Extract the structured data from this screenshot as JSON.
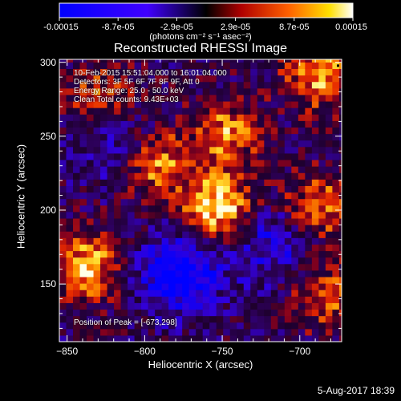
{
  "colorbar": {
    "ticks": [
      "-0.00015",
      "-8.7e-05",
      "-2.9e-05",
      "2.9e-05",
      "8.7e-05",
      "0.00015"
    ],
    "units": "(photons cm⁻² s⁻¹ asec⁻²)"
  },
  "header": {
    "title": "Reconstructed RHESSI Image"
  },
  "info": {
    "line1": "10-Feb-2015 15:51:04.000 to 16:01:04.000",
    "line2": "Detectors: 3F 5F 6F 7F 8F 9F, Att 0",
    "line3": "Energy Range: 25.0 - 50.0 keV",
    "line4": "Clean     Total counts: 9.43E+03",
    "peak": "Position of Peak = [-673,298]"
  },
  "footer": {
    "date": "5-Aug-2017 18:39"
  },
  "chart_data": {
    "type": "heatmap",
    "title": "Reconstructed RHESSI Image",
    "xlabel": "Heliocentric X (arcsec)",
    "ylabel": "Heliocentric Y (arcsec)",
    "xlim": [
      -855,
      -673
    ],
    "ylim": [
      111,
      302
    ],
    "xticks": [
      -850,
      -800,
      -750,
      -700
    ],
    "yticks": [
      150,
      200,
      250,
      300
    ],
    "colorbar_range": [
      -0.00015,
      0.00015
    ],
    "colormap": [
      "#0000ff",
      "#000000",
      "#cc0000",
      "#ffffff"
    ],
    "peak": [
      -673,
      298
    ],
    "bright_regions": [
      {
        "x": -755,
        "y": 200,
        "level": 1.0
      },
      {
        "x": -795,
        "y": 230,
        "level": 0.85
      },
      {
        "x": -750,
        "y": 250,
        "level": 0.7
      },
      {
        "x": -840,
        "y": 160,
        "level": 0.85
      },
      {
        "x": -690,
        "y": 290,
        "level": 0.8
      },
      {
        "x": -690,
        "y": 200,
        "level": 0.7
      },
      {
        "x": -685,
        "y": 140,
        "level": 0.6
      },
      {
        "x": -830,
        "y": 275,
        "level": 0.55
      }
    ],
    "dark_regions": [
      {
        "x": -780,
        "y": 155,
        "level": 1.0
      },
      {
        "x": -815,
        "y": 240,
        "level": 0.5
      },
      {
        "x": -720,
        "y": 175,
        "level": 0.6
      }
    ]
  }
}
